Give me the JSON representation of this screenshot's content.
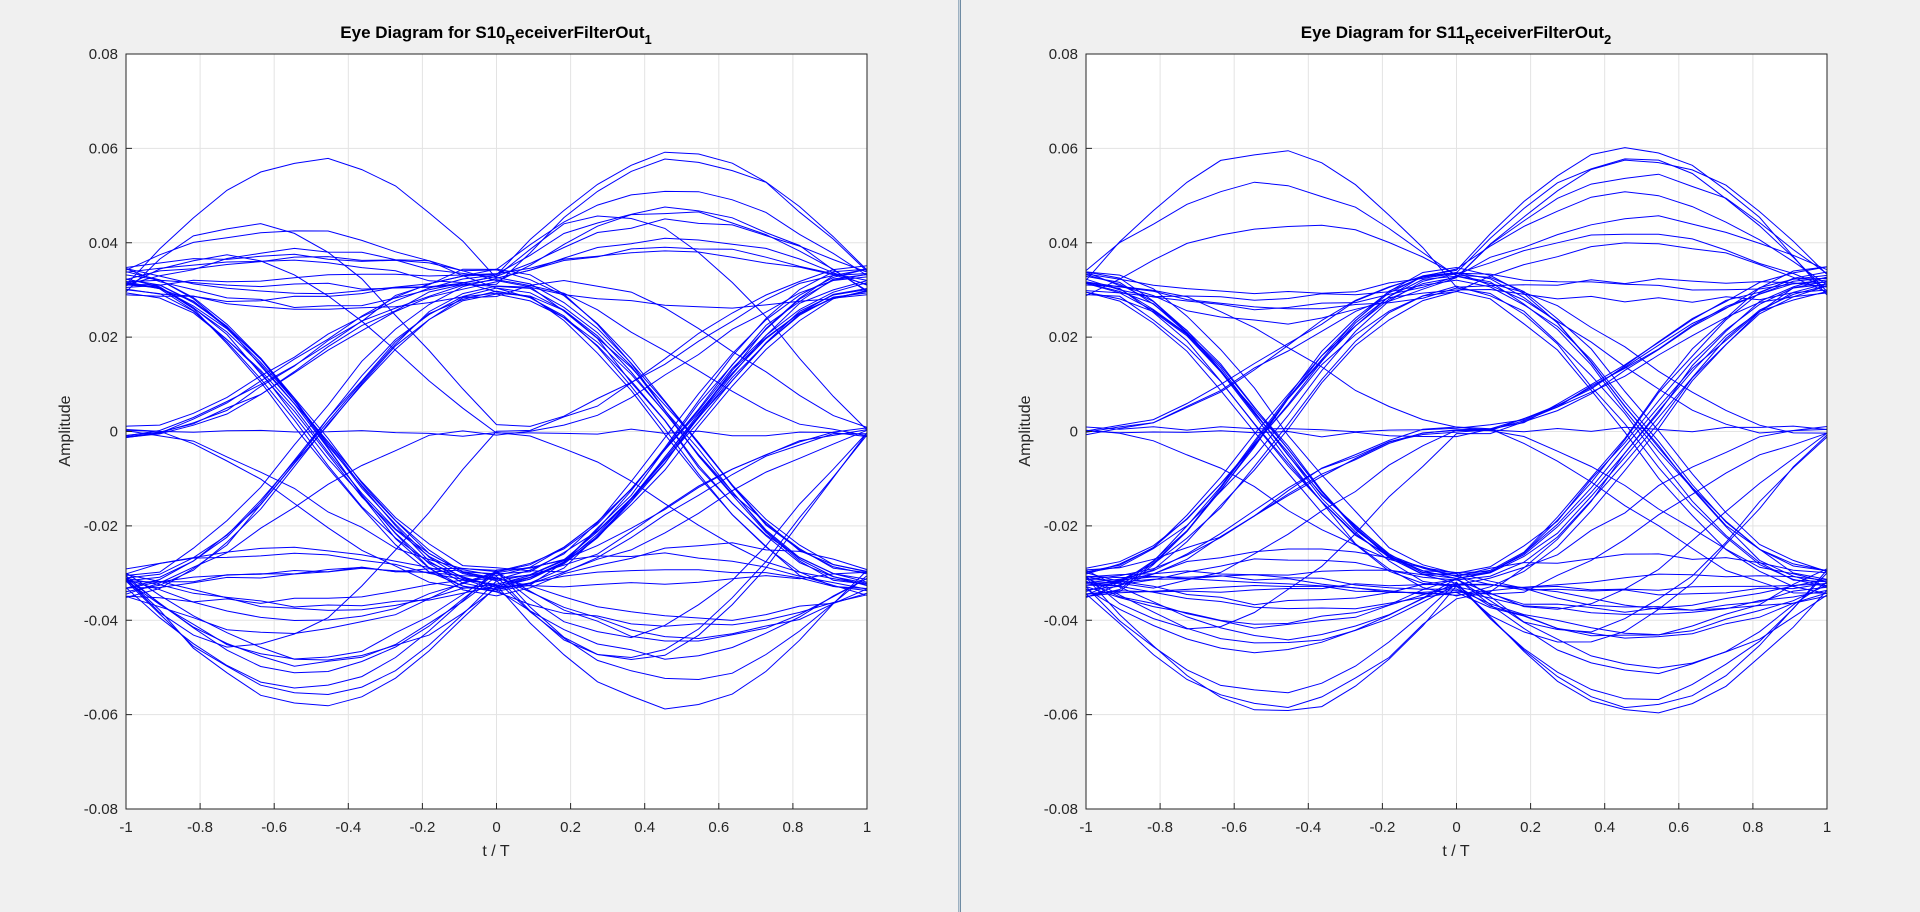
{
  "figures": [
    {
      "title_main": "Eye Diagram for S10",
      "title_sub": "R",
      "title_rest": "eceiverFilterOut",
      "title_index": "1",
      "xlabel": "t / T",
      "ylabel": "Amplitude"
    },
    {
      "title_main": "Eye Diagram for S11",
      "title_sub": "R",
      "title_rest": "eceiverFilterOut",
      "title_index": "2",
      "xlabel": "t / T",
      "ylabel": "Amplitude"
    }
  ],
  "chart_data": [
    {
      "type": "line",
      "title": "Eye Diagram for S10_ReceiverFilterOut_1",
      "xlabel": "t / T",
      "ylabel": "Amplitude",
      "xlim": [
        -1,
        1
      ],
      "ylim": [
        -0.08,
        0.08
      ],
      "xticks": [
        -1,
        -0.8,
        -0.6,
        -0.4,
        -0.2,
        0,
        0.2,
        0.4,
        0.6,
        0.8,
        1
      ],
      "xtick_labels": [
        "-1",
        "-0.8",
        "-0.6",
        "-0.4",
        "-0.2",
        "0",
        "0.2",
        "0.4",
        "0.6",
        "0.8",
        "1"
      ],
      "yticks": [
        -0.08,
        -0.06,
        -0.04,
        -0.02,
        0,
        0.02,
        0.04,
        0.06,
        0.08
      ],
      "ytick_labels": [
        "-0.08",
        "-0.06",
        "-0.04",
        "-0.02",
        "0",
        "0.02",
        "0.04",
        "0.06",
        "0.08"
      ],
      "grid": true,
      "color": "#0000ff",
      "eye_levels": [
        0.032,
        0,
        -0.032
      ],
      "peak_range": [
        0.023,
        0.065
      ],
      "trough_range": [
        -0.061,
        -0.023
      ],
      "num_traces": 60,
      "seed": 11
    },
    {
      "type": "line",
      "title": "Eye Diagram for S11_ReceiverFilterOut_2",
      "xlabel": "t / T",
      "ylabel": "Amplitude",
      "xlim": [
        -1,
        1
      ],
      "ylim": [
        -0.08,
        0.08
      ],
      "xticks": [
        -1,
        -0.8,
        -0.6,
        -0.4,
        -0.2,
        0,
        0.2,
        0.4,
        0.6,
        0.8,
        1
      ],
      "xtick_labels": [
        "-1",
        "-0.8",
        "-0.6",
        "-0.4",
        "-0.2",
        "0",
        "0.2",
        "0.4",
        "0.6",
        "0.8",
        "1"
      ],
      "yticks": [
        -0.08,
        -0.06,
        -0.04,
        -0.02,
        0,
        0.02,
        0.04,
        0.06,
        0.08
      ],
      "ytick_labels": [
        "-0.08",
        "-0.06",
        "-0.04",
        "-0.02",
        "0",
        "0.02",
        "0.04",
        "0.06",
        "0.08"
      ],
      "grid": true,
      "color": "#0000ff",
      "eye_levels": [
        0.032,
        0,
        -0.032
      ],
      "peak_range": [
        0.023,
        0.065
      ],
      "trough_range": [
        -0.061,
        -0.023
      ],
      "num_traces": 60,
      "seed": 23
    }
  ]
}
